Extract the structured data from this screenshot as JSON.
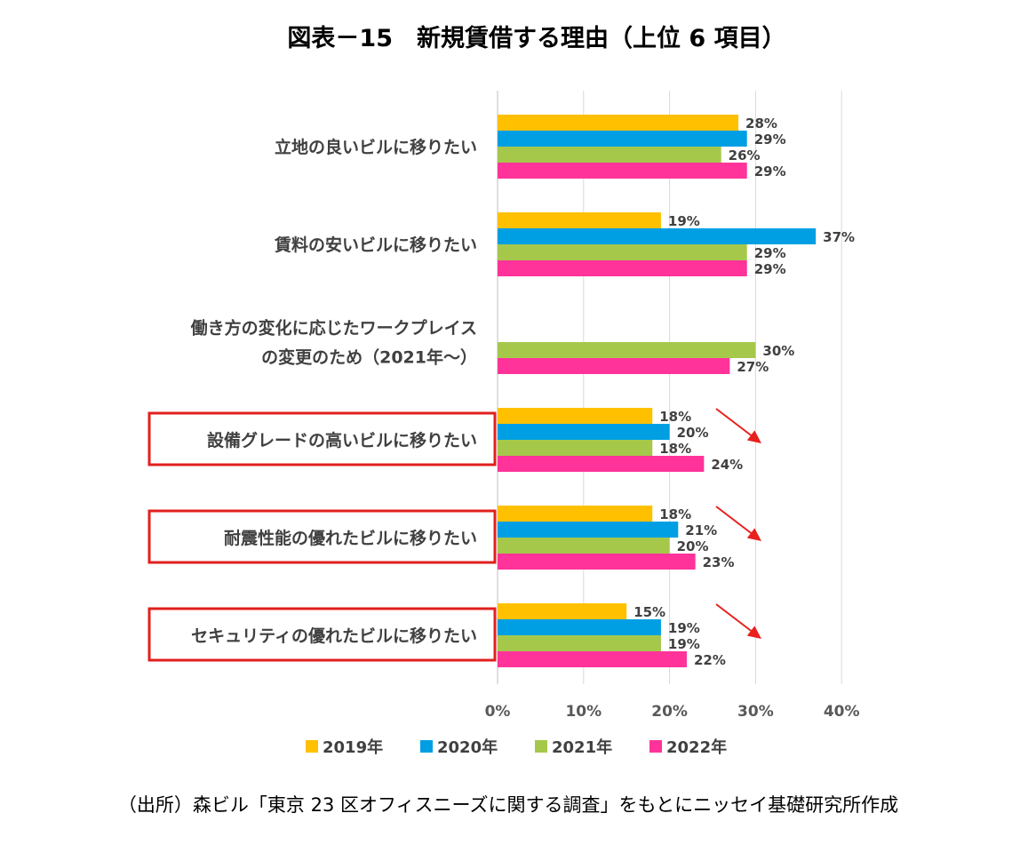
{
  "title": "図表－15　新規賃借する理由（上位 6 項目）",
  "source": "（出所）森ビル「東京 23 区オフィスニーズに関する調査」をもとにニッセイ基礎研究所作成",
  "colors": {
    "2019": "#FFC000",
    "2020": "#009FE3",
    "2021": "#A5C84B",
    "2022": "#FF3399",
    "highlight_box": "#E0201E",
    "arrow": "#E8201E"
  },
  "chart_data": {
    "type": "bar",
    "orientation": "horizontal",
    "title": "図表－15　新規賃借する理由（上位 6 項目）",
    "xlim": [
      0,
      40
    ],
    "x_ticks": [
      "0%",
      "10%",
      "20%",
      "30%",
      "40%"
    ],
    "grid": true,
    "legend_position": "bottom",
    "categories": [
      [
        "立地の良いビルに移りたい"
      ],
      [
        "賃料の安いビルに移りたい"
      ],
      [
        "働き方の変化に応じたワークプレイス",
        "の変更のため（2021年～）"
      ],
      [
        "設備グレードの高いビルに移りたい"
      ],
      [
        "耐震性能の優れたビルに移りたい"
      ],
      [
        "セキュリティの優れたビルに移りたい"
      ]
    ],
    "highlighted": [
      false,
      false,
      false,
      true,
      true,
      true
    ],
    "trend_arrow": [
      false,
      false,
      false,
      true,
      true,
      true
    ],
    "series": [
      {
        "name": "2019年",
        "color": "#FFC000",
        "values": [
          28,
          19,
          null,
          18,
          18,
          15
        ]
      },
      {
        "name": "2020年",
        "color": "#009FE3",
        "values": [
          29,
          37,
          null,
          20,
          21,
          19
        ]
      },
      {
        "name": "2021年",
        "color": "#A5C84B",
        "values": [
          26,
          29,
          30,
          18,
          20,
          19
        ]
      },
      {
        "name": "2022年",
        "color": "#FF3399",
        "values": [
          29,
          29,
          27,
          24,
          23,
          22
        ]
      }
    ]
  }
}
